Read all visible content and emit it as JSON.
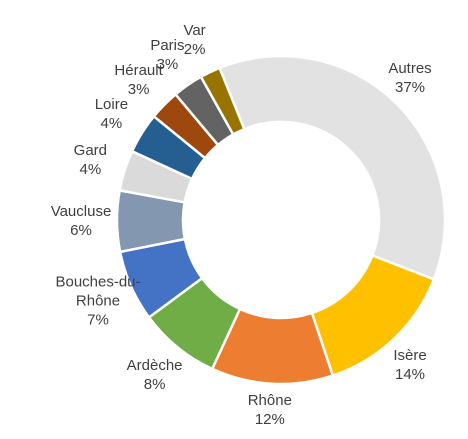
{
  "chart_data": {
    "type": "donut",
    "categories": [
      "Autres",
      "Isère",
      "Rhône",
      "Ardèche",
      "Bouches-du-Rhône",
      "Vaucluse",
      "Gard",
      "Loire",
      "Hérault",
      "Paris",
      "Var"
    ],
    "values": [
      37,
      14,
      12,
      8,
      7,
      6,
      4,
      4,
      3,
      3,
      2
    ],
    "value_labels": [
      "37%",
      "14%",
      "12%",
      "8%",
      "7%",
      "6%",
      "4%",
      "4%",
      "3%",
      "3%",
      "2%"
    ],
    "colors": [
      "#e2e2e2",
      "#ffc000",
      "#ed7d31",
      "#70ad47",
      "#4472c4",
      "#8497b0",
      "#dadada",
      "#255e91",
      "#9e480e",
      "#636363",
      "#997300"
    ]
  }
}
